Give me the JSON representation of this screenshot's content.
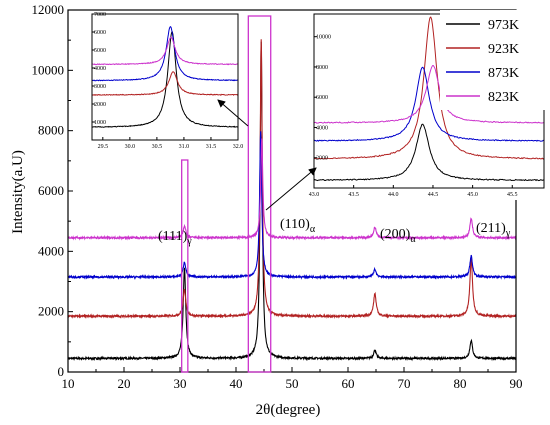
{
  "chart_data": {
    "type": "line",
    "xlabel": "2θ(degree)",
    "ylabel": "Intensity(a.U)",
    "xlim": [
      10,
      90
    ],
    "ylim": [
      0,
      12000
    ],
    "x_ticks": [
      10,
      20,
      30,
      40,
      50,
      60,
      70,
      80,
      90
    ],
    "y_ticks": [
      0,
      2000,
      4000,
      6000,
      8000,
      10000,
      12000
    ],
    "colors": {
      "973K": "#000000",
      "923K": "#b22222",
      "873K": "#0000cc",
      "823K": "#cc33cc"
    },
    "series": [
      {
        "name": "973K",
        "baseline": 450,
        "peaks": [
          {
            "x": 30.8,
            "h": 3000
          },
          {
            "x": 44.5,
            "h": 10500
          },
          {
            "x": 64.8,
            "h": 270
          },
          {
            "x": 82.0,
            "h": 600
          }
        ]
      },
      {
        "name": "923K",
        "baseline": 1850,
        "peaks": [
          {
            "x": 30.8,
            "h": 900
          },
          {
            "x": 44.5,
            "h": 9200
          },
          {
            "x": 64.8,
            "h": 750
          },
          {
            "x": 82.0,
            "h": 1900
          }
        ]
      },
      {
        "name": "873K",
        "baseline": 3150,
        "peaks": [
          {
            "x": 30.8,
            "h": 500
          },
          {
            "x": 44.4,
            "h": 4800
          },
          {
            "x": 64.8,
            "h": 250
          },
          {
            "x": 82.0,
            "h": 700
          }
        ]
      },
      {
        "name": "823K",
        "baseline": 4450,
        "peaks": [
          {
            "x": 30.8,
            "h": 400
          },
          {
            "x": 44.6,
            "h": 3300
          },
          {
            "x": 64.8,
            "h": 350
          },
          {
            "x": 82.0,
            "h": 650
          }
        ]
      }
    ],
    "annotations": [
      {
        "base": "(111)",
        "sub": "γ"
      },
      {
        "base": "(110)",
        "sub": "α"
      },
      {
        "base": "(200)",
        "sub": "α"
      },
      {
        "base": "(211)",
        "sub": "γ"
      }
    ],
    "legend": {
      "placement": "top-right",
      "entries": [
        "973K",
        "923K",
        "873K",
        "823K"
      ]
    },
    "inset_left": {
      "xlim": [
        29.3,
        32.0
      ],
      "ylim": [
        0,
        7000
      ],
      "x_ticks": [
        "29.5",
        "30.0",
        "30.5",
        "31.0",
        "31.5",
        "32.0"
      ],
      "y_ticks": [
        "1000",
        "2000",
        "3000",
        "4000",
        "5000",
        "6000",
        "7000"
      ],
      "series": [
        {
          "name": "973K",
          "baseline": 700,
          "peak_x": 30.78,
          "peak_h": 5300
        },
        {
          "name": "923K",
          "baseline": 2500,
          "peak_x": 30.8,
          "peak_h": 1300
        },
        {
          "name": "873K",
          "baseline": 3300,
          "peak_x": 30.75,
          "peak_h": 3000
        },
        {
          "name": "823K",
          "baseline": 4200,
          "peak_x": 30.76,
          "peak_h": 1500
        }
      ]
    },
    "inset_right": {
      "xlim": [
        43.0,
        45.9
      ],
      "ylim": [
        0,
        11500
      ],
      "x_ticks": [
        "43.0",
        "43.5",
        "44.0",
        "44.5",
        "45.0",
        "45.5"
      ],
      "y_ticks": [
        "2000",
        "4000",
        "6000",
        "8000",
        "10000"
      ],
      "series": [
        {
          "name": "973K",
          "baseline": 500,
          "peak_x": 44.37,
          "peak_h": 3700
        },
        {
          "name": "923K",
          "baseline": 1900,
          "peak_x": 44.47,
          "peak_h": 9400
        },
        {
          "name": "873K",
          "baseline": 3100,
          "peak_x": 44.37,
          "peak_h": 4900
        },
        {
          "name": "823K",
          "baseline": 4300,
          "peak_x": 44.5,
          "peak_h": 3800
        }
      ]
    }
  }
}
